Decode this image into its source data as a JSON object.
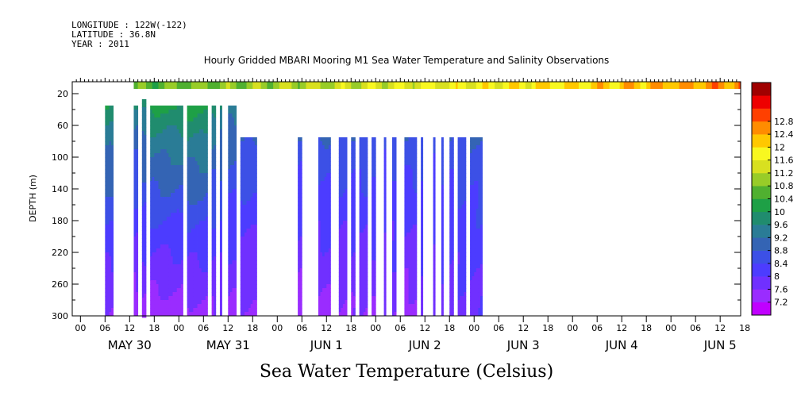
{
  "meta": {
    "longitude": "LONGITUDE : 122W(-122)",
    "latitude": "LATITUDE : 36.8N",
    "year": "YEAR : 2011"
  },
  "chart_data": {
    "type": "heatmap",
    "title": "Hourly Gridded MBARI Mooring M1 Sea Water Temperature and Salinity Observations",
    "caption": "Sea Water Temperature (Celsius)",
    "ylabel": "DEPTH (m)",
    "ylim": [
      300,
      5
    ],
    "yticks": [
      20,
      60,
      100,
      140,
      180,
      220,
      260,
      300
    ],
    "xrange_hours": [
      -8,
      155
    ],
    "xticks": [
      {
        "h": -6,
        "label": "00"
      },
      {
        "h": 0,
        "label": "06"
      },
      {
        "h": 6,
        "label": "12"
      },
      {
        "h": 12,
        "label": "18"
      },
      {
        "h": 18,
        "label": "00"
      },
      {
        "h": 24,
        "label": "06"
      },
      {
        "h": 30,
        "label": "12"
      },
      {
        "h": 36,
        "label": "18"
      },
      {
        "h": 42,
        "label": "00"
      },
      {
        "h": 48,
        "label": "06"
      },
      {
        "h": 54,
        "label": "12"
      },
      {
        "h": 60,
        "label": "18"
      },
      {
        "h": 66,
        "label": "00"
      },
      {
        "h": 72,
        "label": "06"
      },
      {
        "h": 78,
        "label": "12"
      },
      {
        "h": 84,
        "label": "18"
      },
      {
        "h": 90,
        "label": "00"
      },
      {
        "h": 96,
        "label": "06"
      },
      {
        "h": 102,
        "label": "12"
      },
      {
        "h": 108,
        "label": "18"
      },
      {
        "h": 114,
        "label": "00"
      },
      {
        "h": 120,
        "label": "06"
      },
      {
        "h": 126,
        "label": "12"
      },
      {
        "h": 132,
        "label": "18"
      },
      {
        "h": 138,
        "label": "00"
      },
      {
        "h": 144,
        "label": "06"
      },
      {
        "h": 150,
        "label": "12"
      },
      {
        "h": 156,
        "label": "18"
      }
    ],
    "day_labels": [
      {
        "h": 6,
        "label": "MAY 30"
      },
      {
        "h": 30,
        "label": "MAY 31"
      },
      {
        "h": 54,
        "label": "JUN  1"
      },
      {
        "h": 78,
        "label": "JUN  2"
      },
      {
        "h": 102,
        "label": "JUN  3"
      },
      {
        "h": 126,
        "label": "JUN  4"
      },
      {
        "h": 150,
        "label": "JUN  5"
      }
    ],
    "colorbar": {
      "levels": [
        7.2,
        7.6,
        8,
        8.4,
        8.8,
        9.2,
        9.6,
        10,
        10.4,
        10.8,
        11.2,
        11.6,
        12,
        12.4,
        12.8
      ],
      "label_levels": [
        7.2,
        7.6,
        8,
        8.4,
        8.8,
        9.2,
        9.6,
        10,
        10.4,
        10.8,
        11.2,
        11.6,
        12,
        12.4,
        12.8
      ],
      "colors": [
        "#c000ff",
        "#9a2cff",
        "#7030ff",
        "#4c3cff",
        "#3c50e6",
        "#3464b4",
        "#2a7c96",
        "#208c6e",
        "#1ea046",
        "#50b030",
        "#98cc28",
        "#d8e020",
        "#f8f820",
        "#ffc800",
        "#ff8c00",
        "#ff4000",
        "#ee0000",
        "#a00000"
      ]
    },
    "surface_band": {
      "depth_top": 5,
      "depth_bottom": 14
    },
    "data_segments": [
      {
        "t0": 0,
        "t1": 2,
        "top": 35,
        "temp_top": 9.9,
        "temp_bottom": 7.5
      },
      {
        "t0": 7,
        "t1": 8,
        "top": 35,
        "temp_top": 9.5,
        "temp_bottom": 7.3
      },
      {
        "t0": 9,
        "t1": 10,
        "top": 27,
        "temp_top": 9.8,
        "temp_bottom": 7.4
      },
      {
        "t0": 11,
        "t1": 19,
        "top": 35,
        "temp_top": 10.1,
        "temp_bottom": 7.3
      },
      {
        "t0": 20,
        "t1": 25,
        "top": 35,
        "temp_top": 10.2,
        "temp_bottom": 7.4
      },
      {
        "t0": 26,
        "t1": 27,
        "top": 35,
        "temp_top": 9.7,
        "temp_bottom": 7.5
      },
      {
        "t0": 28,
        "t1": 28.5,
        "top": 35,
        "temp_top": 9.6,
        "temp_bottom": 7.6
      },
      {
        "t0": 30,
        "t1": 32,
        "top": 35,
        "temp_top": 9.4,
        "temp_bottom": 7.5
      },
      {
        "t0": 33,
        "t1": 37,
        "top": 75,
        "temp_top": 8.9,
        "temp_bottom": 7.5
      },
      {
        "t0": 47,
        "t1": 48,
        "top": 75,
        "temp_top": 8.7,
        "temp_bottom": 7.4
      },
      {
        "t0": 52,
        "t1": 55,
        "top": 75,
        "temp_top": 8.8,
        "temp_bottom": 7.5
      },
      {
        "t0": 57,
        "t1": 59,
        "top": 75,
        "temp_top": 8.8,
        "temp_bottom": 7.5
      },
      {
        "t0": 60,
        "t1": 61,
        "top": 75,
        "temp_top": 8.7,
        "temp_bottom": 7.6
      },
      {
        "t0": 62,
        "t1": 64,
        "top": 75,
        "temp_top": 8.8,
        "temp_bottom": 7.5
      },
      {
        "t0": 65,
        "t1": 66,
        "top": 75,
        "temp_top": 8.7,
        "temp_bottom": 7.6
      },
      {
        "t0": 68,
        "t1": 68.5,
        "top": 75,
        "temp_top": 8.6,
        "temp_bottom": 7.6
      },
      {
        "t0": 70,
        "t1": 71,
        "top": 75,
        "temp_top": 8.6,
        "temp_bottom": 7.7
      },
      {
        "t0": 73,
        "t1": 76,
        "top": 75,
        "temp_top": 8.8,
        "temp_bottom": 7.4
      },
      {
        "t0": 77,
        "t1": 77.5,
        "top": 75,
        "temp_top": 8.6,
        "temp_bottom": 7.8
      },
      {
        "t0": 80,
        "t1": 80.5,
        "top": 75,
        "temp_top": 8.6,
        "temp_bottom": 7.8
      },
      {
        "t0": 82,
        "t1": 82.5,
        "top": 75,
        "temp_top": 8.6,
        "temp_bottom": 7.8
      },
      {
        "t0": 84,
        "t1": 85,
        "top": 75,
        "temp_top": 8.7,
        "temp_bottom": 7.8
      },
      {
        "t0": 86,
        "t1": 88,
        "top": 75,
        "temp_top": 8.8,
        "temp_bottom": 7.8
      },
      {
        "t0": 89,
        "t1": 92,
        "top": 75,
        "temp_top": 8.8,
        "temp_bottom": 7.9
      }
    ]
  }
}
